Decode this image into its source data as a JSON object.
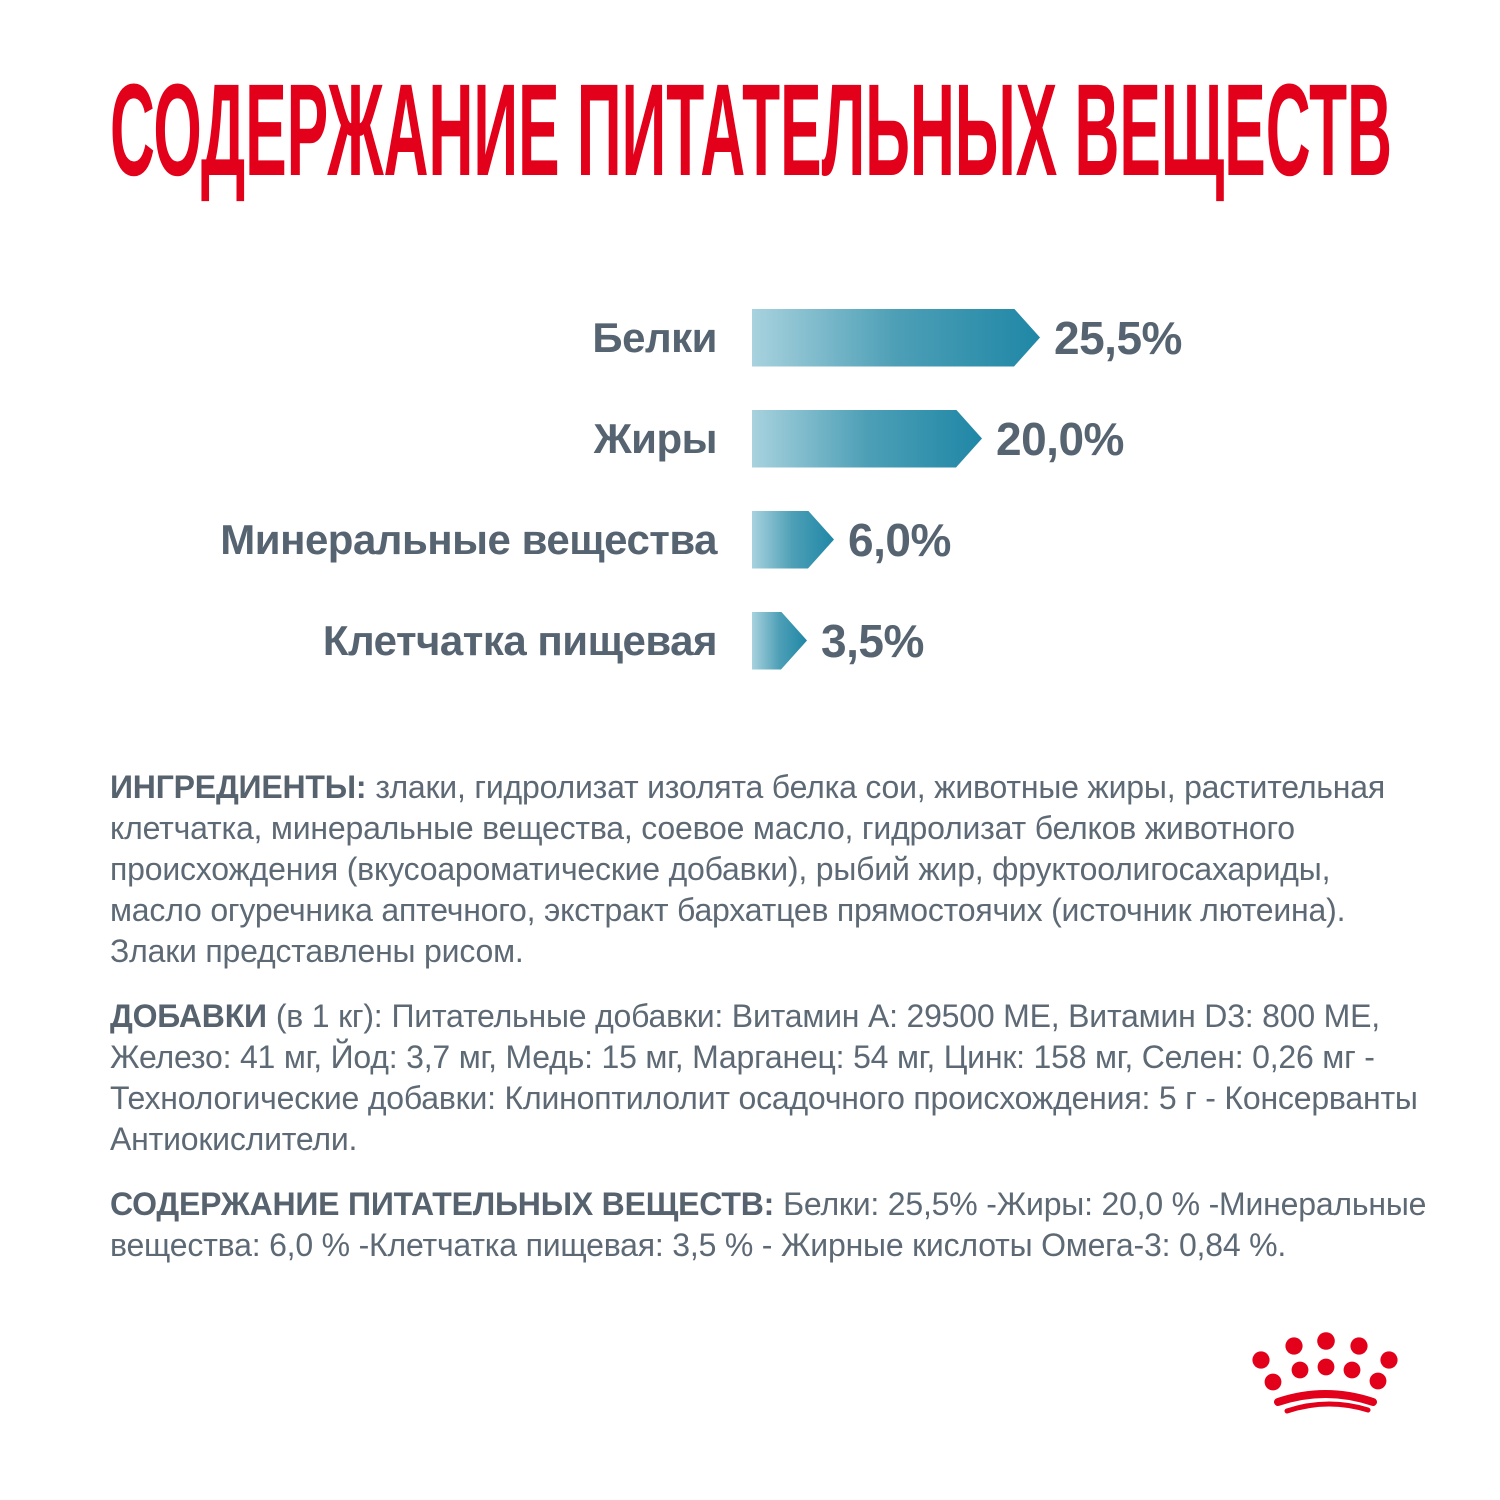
{
  "title": {
    "text": "СОДЕРЖАНИЕ ПИТАТЕЛЬНЫХ ВЕЩЕСТВ",
    "color": "#E2001A"
  },
  "chart_data": {
    "type": "bar",
    "orientation": "horizontal",
    "title": "СОДЕРЖАНИЕ ПИТАТЕЛЬНЫХ ВЕЩЕСТВ",
    "categories": [
      "Белки",
      "Жиры",
      "Минеральные вещества",
      "Клетчатка пищевая"
    ],
    "values": [
      25.5,
      20.0,
      6.0,
      3.5
    ],
    "value_labels": [
      "25,5%",
      "20,0%",
      "6,0%",
      "3,5%"
    ],
    "unit": "%",
    "xlim": [
      0,
      27
    ],
    "grid": false,
    "legend": false,
    "bar_gradient": [
      "#A8D2DE",
      "#1F87A6"
    ],
    "label_color": "#566370"
  },
  "paragraphs": [
    {
      "lead": "ИНГРЕДИЕНТЫ:",
      "lines": [
        "злаки, гидролизат изолята белка сои, животные жиры, растительная",
        "клетчатка, минеральные вещества, соевое масло, гидролизат белков животного",
        "происхождения (вкусоароматические добавки), рыбий жир, фруктоолигосахариды,",
        "масло огуречника аптечного, экстракт бархатцев прямостоячих (источник лютеина).",
        "Злаки представлены рисом."
      ]
    },
    {
      "lead": "ДОБАВКИ",
      "lead_suffix": "(в 1 кг):",
      "lines": [
        "Питательные добавки: Витамин А: 29500 МЕ, Витамин D3: 800 МЕ,",
        "Железо: 41 мг, Йод: 3,7 мг, Медь: 15 мг, Марганец: 54 мг, Цинк: 158 мг, Селен: 0,26 мг -",
        "Технологические добавки: Клиноптилолит осадочного происхождения: 5 г - Консерванты",
        "Антиокислители."
      ]
    },
    {
      "lead": "СОДЕРЖАНИЕ ПИТАТЕЛЬНЫХ ВЕЩЕСТВ:",
      "lines": [
        "Белки: 25,5% -Жиры: 20,0 % -Минеральные",
        "вещества: 6,0 % -Клетчатка пищевая: 3,5 % - Жирные кислоты Омега-3: 0,84 %."
      ]
    }
  ],
  "logo": {
    "icon": "royal-canin-crown-icon",
    "color": "#E2001A"
  },
  "colors": {
    "background": "#FFFFFF",
    "brand_red": "#E2001A",
    "heading_gray": "#566370",
    "body_gray": "#5D6974",
    "bar_light": "#A8D2DE",
    "bar_dark": "#1F87A6"
  }
}
